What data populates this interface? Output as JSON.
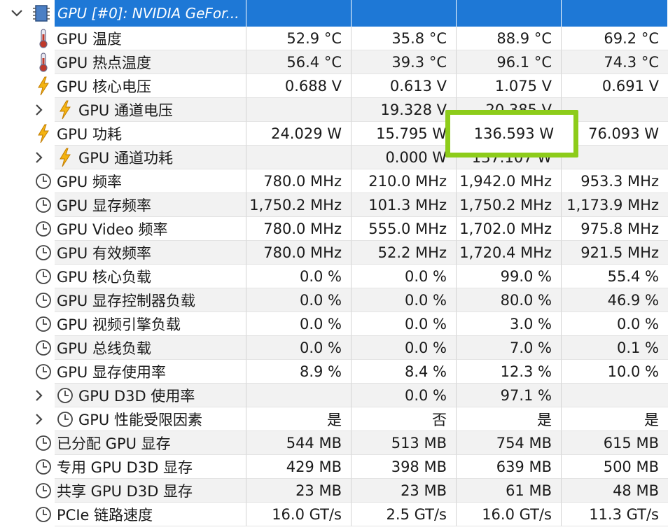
{
  "header": {
    "device_label": "GPU [#0]: NVIDIA GeFor..."
  },
  "rows": [
    {
      "icon": "thermometer-icon",
      "expander": false,
      "label": "GPU 温度",
      "v": [
        "52.9 °C",
        "35.8 °C",
        "88.9 °C",
        "69.2 °C"
      ]
    },
    {
      "icon": "thermometer-icon",
      "expander": false,
      "label": "GPU 热点温度",
      "v": [
        "56.4 °C",
        "39.3 °C",
        "96.1 °C",
        "74.3 °C"
      ]
    },
    {
      "icon": "lightning-icon",
      "expander": false,
      "label": "GPU 核心电压",
      "v": [
        "0.688 V",
        "0.613 V",
        "1.075 V",
        "0.691 V"
      ]
    },
    {
      "icon": "lightning-icon",
      "expander": true,
      "label": "GPU 通道电压",
      "v": [
        "",
        "19.328 V",
        "20.385 V",
        ""
      ]
    },
    {
      "icon": "lightning-icon",
      "expander": false,
      "label": "GPU 功耗",
      "v": [
        "24.029 W",
        "15.795 W",
        "136.593 W",
        "76.093 W"
      ]
    },
    {
      "icon": "lightning-icon",
      "expander": true,
      "label": "GPU 通道功耗",
      "v": [
        "",
        "0.000 W",
        "137.107 W",
        ""
      ]
    },
    {
      "icon": "clock-icon",
      "expander": false,
      "label": "GPU 频率",
      "v": [
        "780.0 MHz",
        "210.0 MHz",
        "1,942.0 MHz",
        "953.3 MHz"
      ]
    },
    {
      "icon": "clock-icon",
      "expander": false,
      "label": "GPU 显存频率",
      "v": [
        "1,750.2 MHz",
        "101.3 MHz",
        "1,750.2 MHz",
        "1,173.9 MHz"
      ]
    },
    {
      "icon": "clock-icon",
      "expander": false,
      "label": "GPU Video 频率",
      "v": [
        "780.0 MHz",
        "555.0 MHz",
        "1,702.0 MHz",
        "975.8 MHz"
      ]
    },
    {
      "icon": "clock-icon",
      "expander": false,
      "label": "GPU 有效频率",
      "v": [
        "780.0 MHz",
        "52.2 MHz",
        "1,720.4 MHz",
        "921.5 MHz"
      ]
    },
    {
      "icon": "clock-icon",
      "expander": false,
      "label": "GPU 核心负载",
      "v": [
        "0.0 %",
        "0.0 %",
        "99.0 %",
        "55.4 %"
      ]
    },
    {
      "icon": "clock-icon",
      "expander": false,
      "label": "GPU 显存控制器负载",
      "v": [
        "0.0 %",
        "0.0 %",
        "80.0 %",
        "46.9 %"
      ]
    },
    {
      "icon": "clock-icon",
      "expander": false,
      "label": "GPU 视频引擎负载",
      "v": [
        "0.0 %",
        "0.0 %",
        "3.0 %",
        "0.0 %"
      ]
    },
    {
      "icon": "clock-icon",
      "expander": false,
      "label": "GPU 总线负载",
      "v": [
        "0.0 %",
        "0.0 %",
        "7.0 %",
        "0.1 %"
      ]
    },
    {
      "icon": "clock-icon",
      "expander": false,
      "label": "GPU 显存使用率",
      "v": [
        "8.9 %",
        "8.4 %",
        "12.3 %",
        "10.0 %"
      ]
    },
    {
      "icon": "clock-icon",
      "expander": true,
      "label": "GPU D3D 使用率",
      "v": [
        "",
        "0.0 %",
        "97.1 %",
        ""
      ]
    },
    {
      "icon": "clock-icon",
      "expander": true,
      "label": "GPU 性能受限因素",
      "v": [
        "是",
        "否",
        "是",
        "是"
      ]
    },
    {
      "icon": "clock-icon",
      "expander": false,
      "label": "已分配 GPU 显存",
      "v": [
        "544 MB",
        "513 MB",
        "754 MB",
        "615 MB"
      ]
    },
    {
      "icon": "clock-icon",
      "expander": false,
      "label": "专用 GPU D3D 显存",
      "v": [
        "429 MB",
        "398 MB",
        "639 MB",
        "500 MB"
      ]
    },
    {
      "icon": "clock-icon",
      "expander": false,
      "label": "共享 GPU D3D 显存",
      "v": [
        "23 MB",
        "23 MB",
        "61 MB",
        "48 MB"
      ]
    },
    {
      "icon": "clock-icon",
      "expander": false,
      "label": "PCIe 链路速度",
      "v": [
        "16.0 GT/s",
        "2.5 GT/s",
        "16.0 GT/s",
        "11.3 GT/s"
      ]
    }
  ],
  "highlight": {
    "value": "136.593 W",
    "color": "#8dcc1a"
  },
  "colors": {
    "header_bg": "#1e78d6",
    "alt_row_bg": "#f2f2f2",
    "lightning": "#f3b312",
    "thermometer": "#c0392b"
  }
}
